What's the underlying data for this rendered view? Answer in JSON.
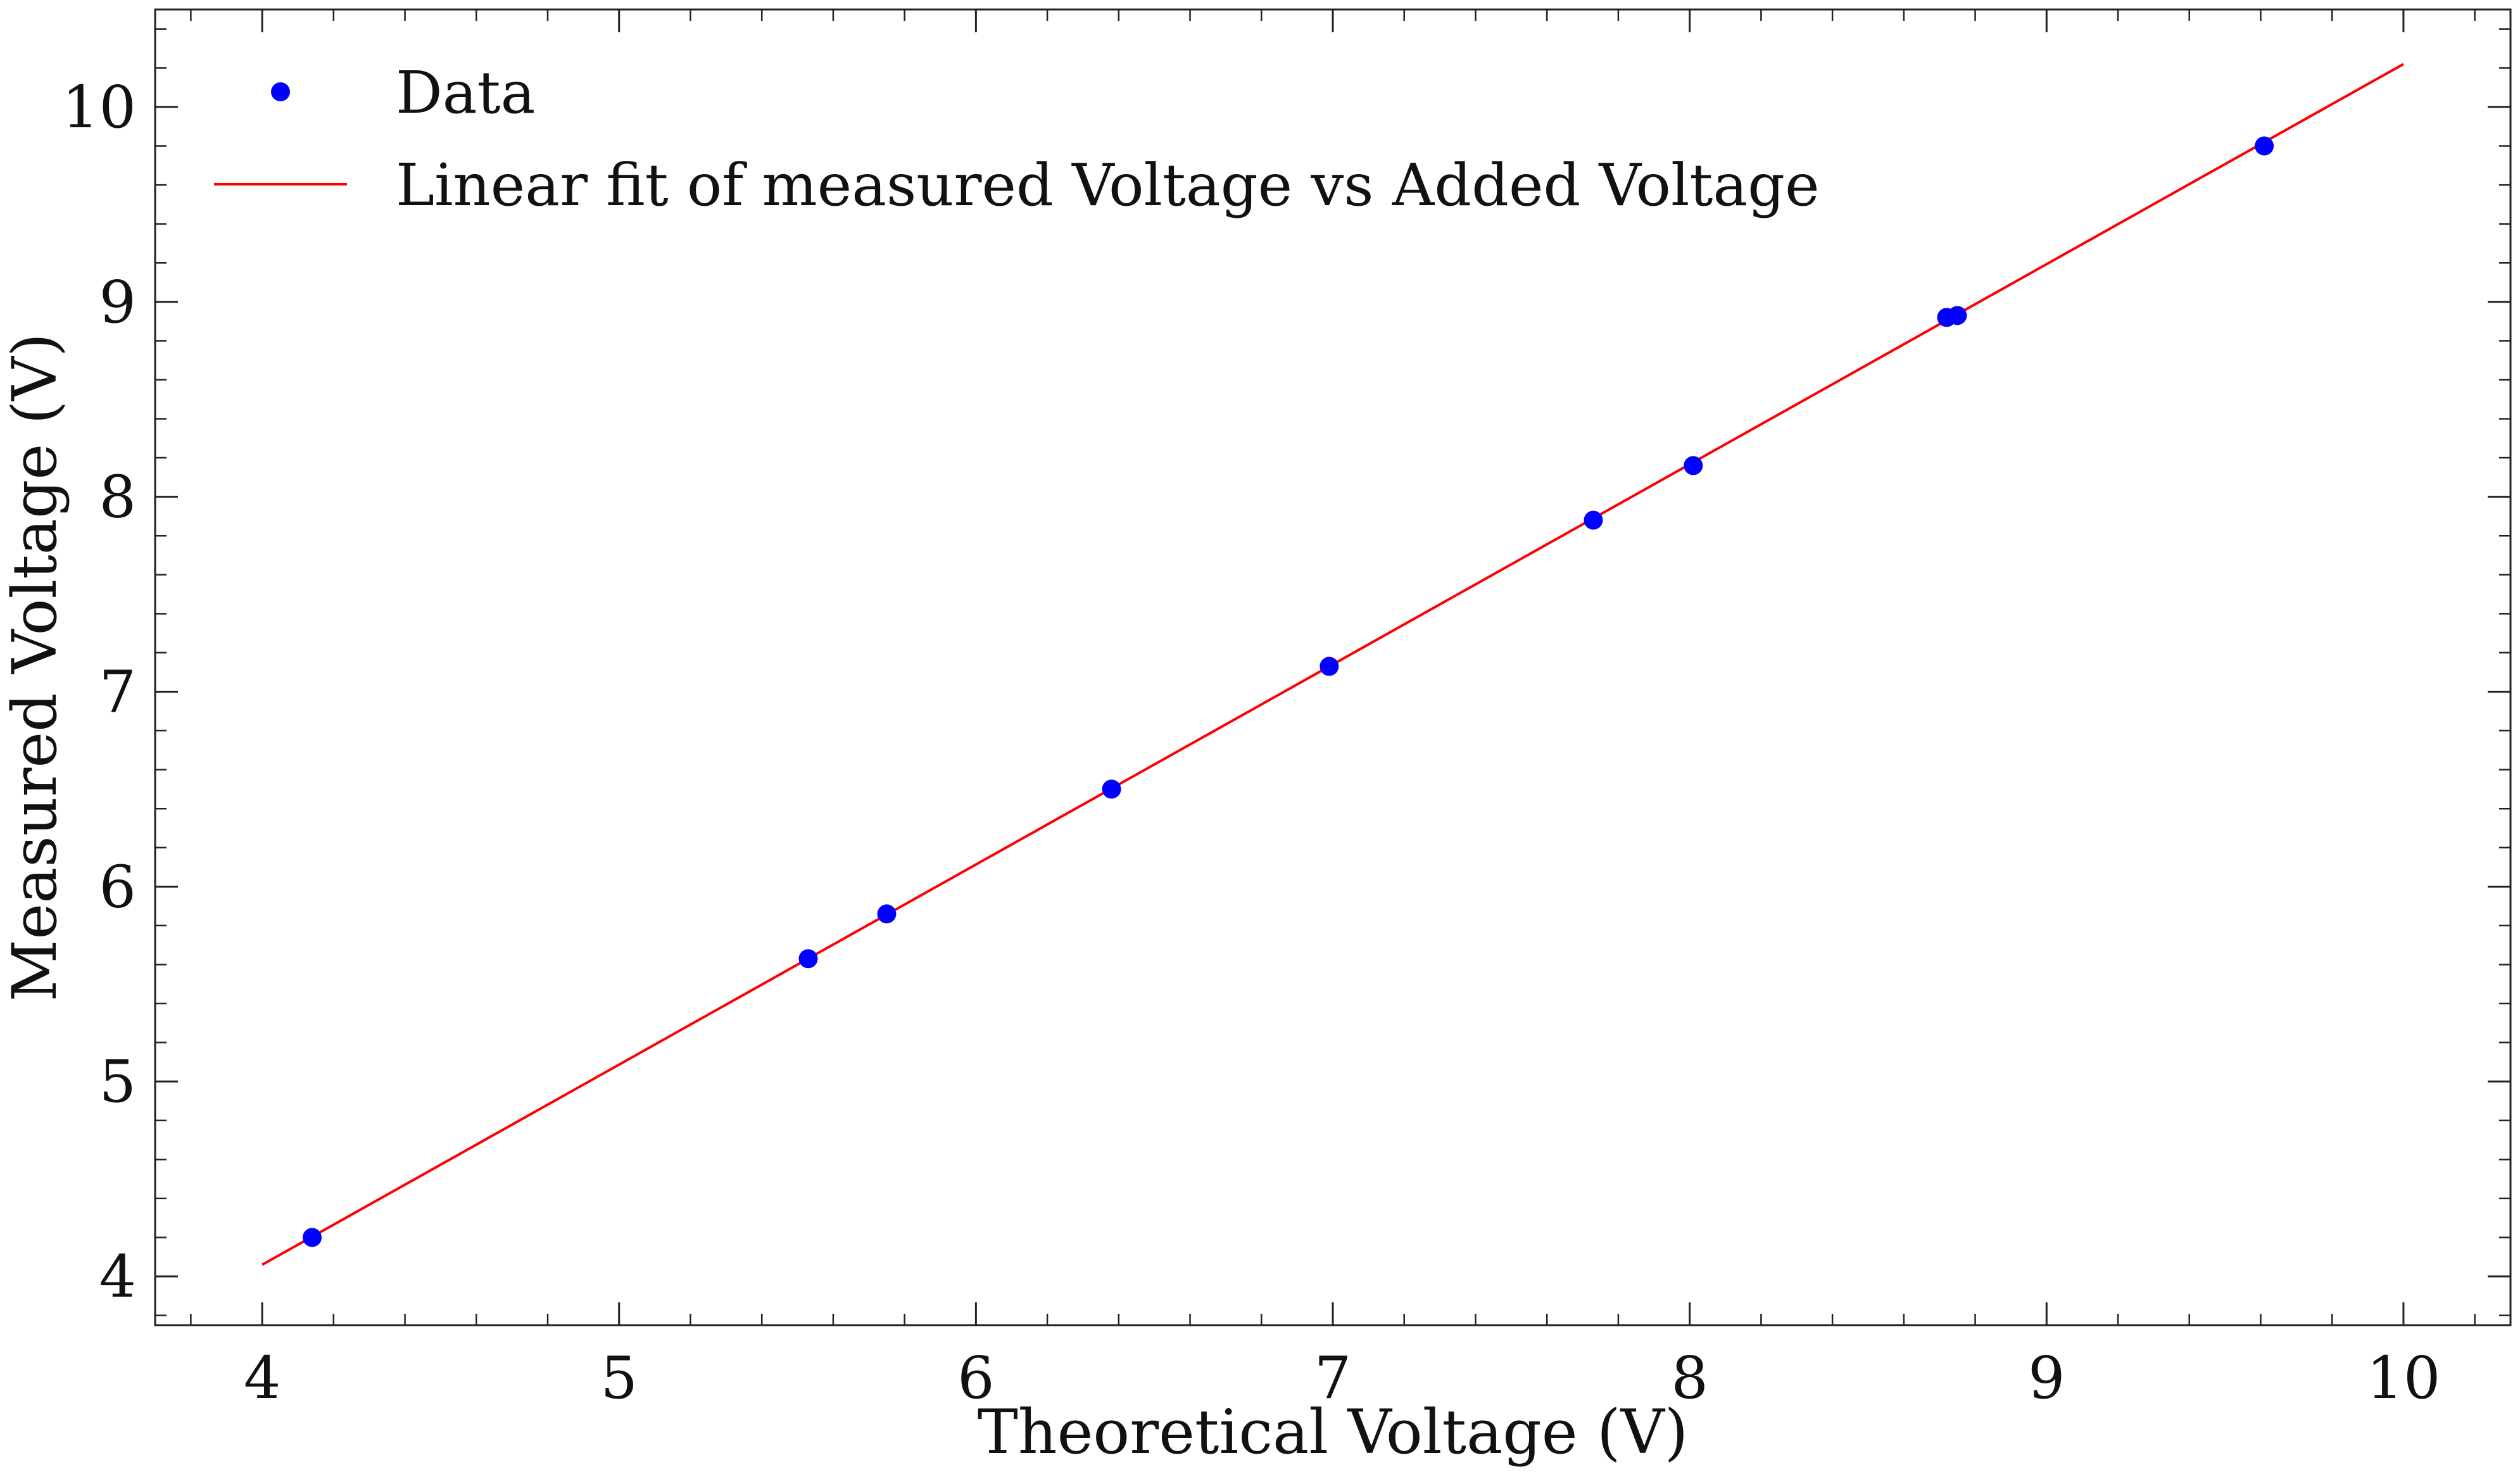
{
  "chart_data": {
    "type": "scatter",
    "xlabel": "Theoretical Voltage (V)",
    "ylabel": "Measured Voltage (V)",
    "xlim": [
      3.7,
      10.3
    ],
    "ylim": [
      3.75,
      10.5
    ],
    "xticks": [
      4,
      5,
      6,
      7,
      8,
      9,
      10
    ],
    "yticks": [
      4,
      5,
      6,
      7,
      8,
      9,
      10
    ],
    "grid": false,
    "legend_position": "top-left",
    "series": [
      {
        "name": "Data",
        "type": "scatter",
        "color": "#0000ff",
        "x": [
          4.14,
          5.53,
          5.75,
          6.38,
          6.99,
          7.73,
          8.01,
          8.72,
          8.75,
          9.61
        ],
        "y": [
          4.2,
          5.63,
          5.86,
          6.5,
          7.13,
          7.88,
          8.16,
          8.92,
          8.93,
          9.8
        ]
      },
      {
        "name": "Linear fit of measured Voltage vs Added Voltage",
        "type": "line",
        "color": "#ff0000",
        "x": [
          4.0,
          10.0
        ],
        "y": [
          4.06,
          10.22
        ]
      }
    ]
  }
}
